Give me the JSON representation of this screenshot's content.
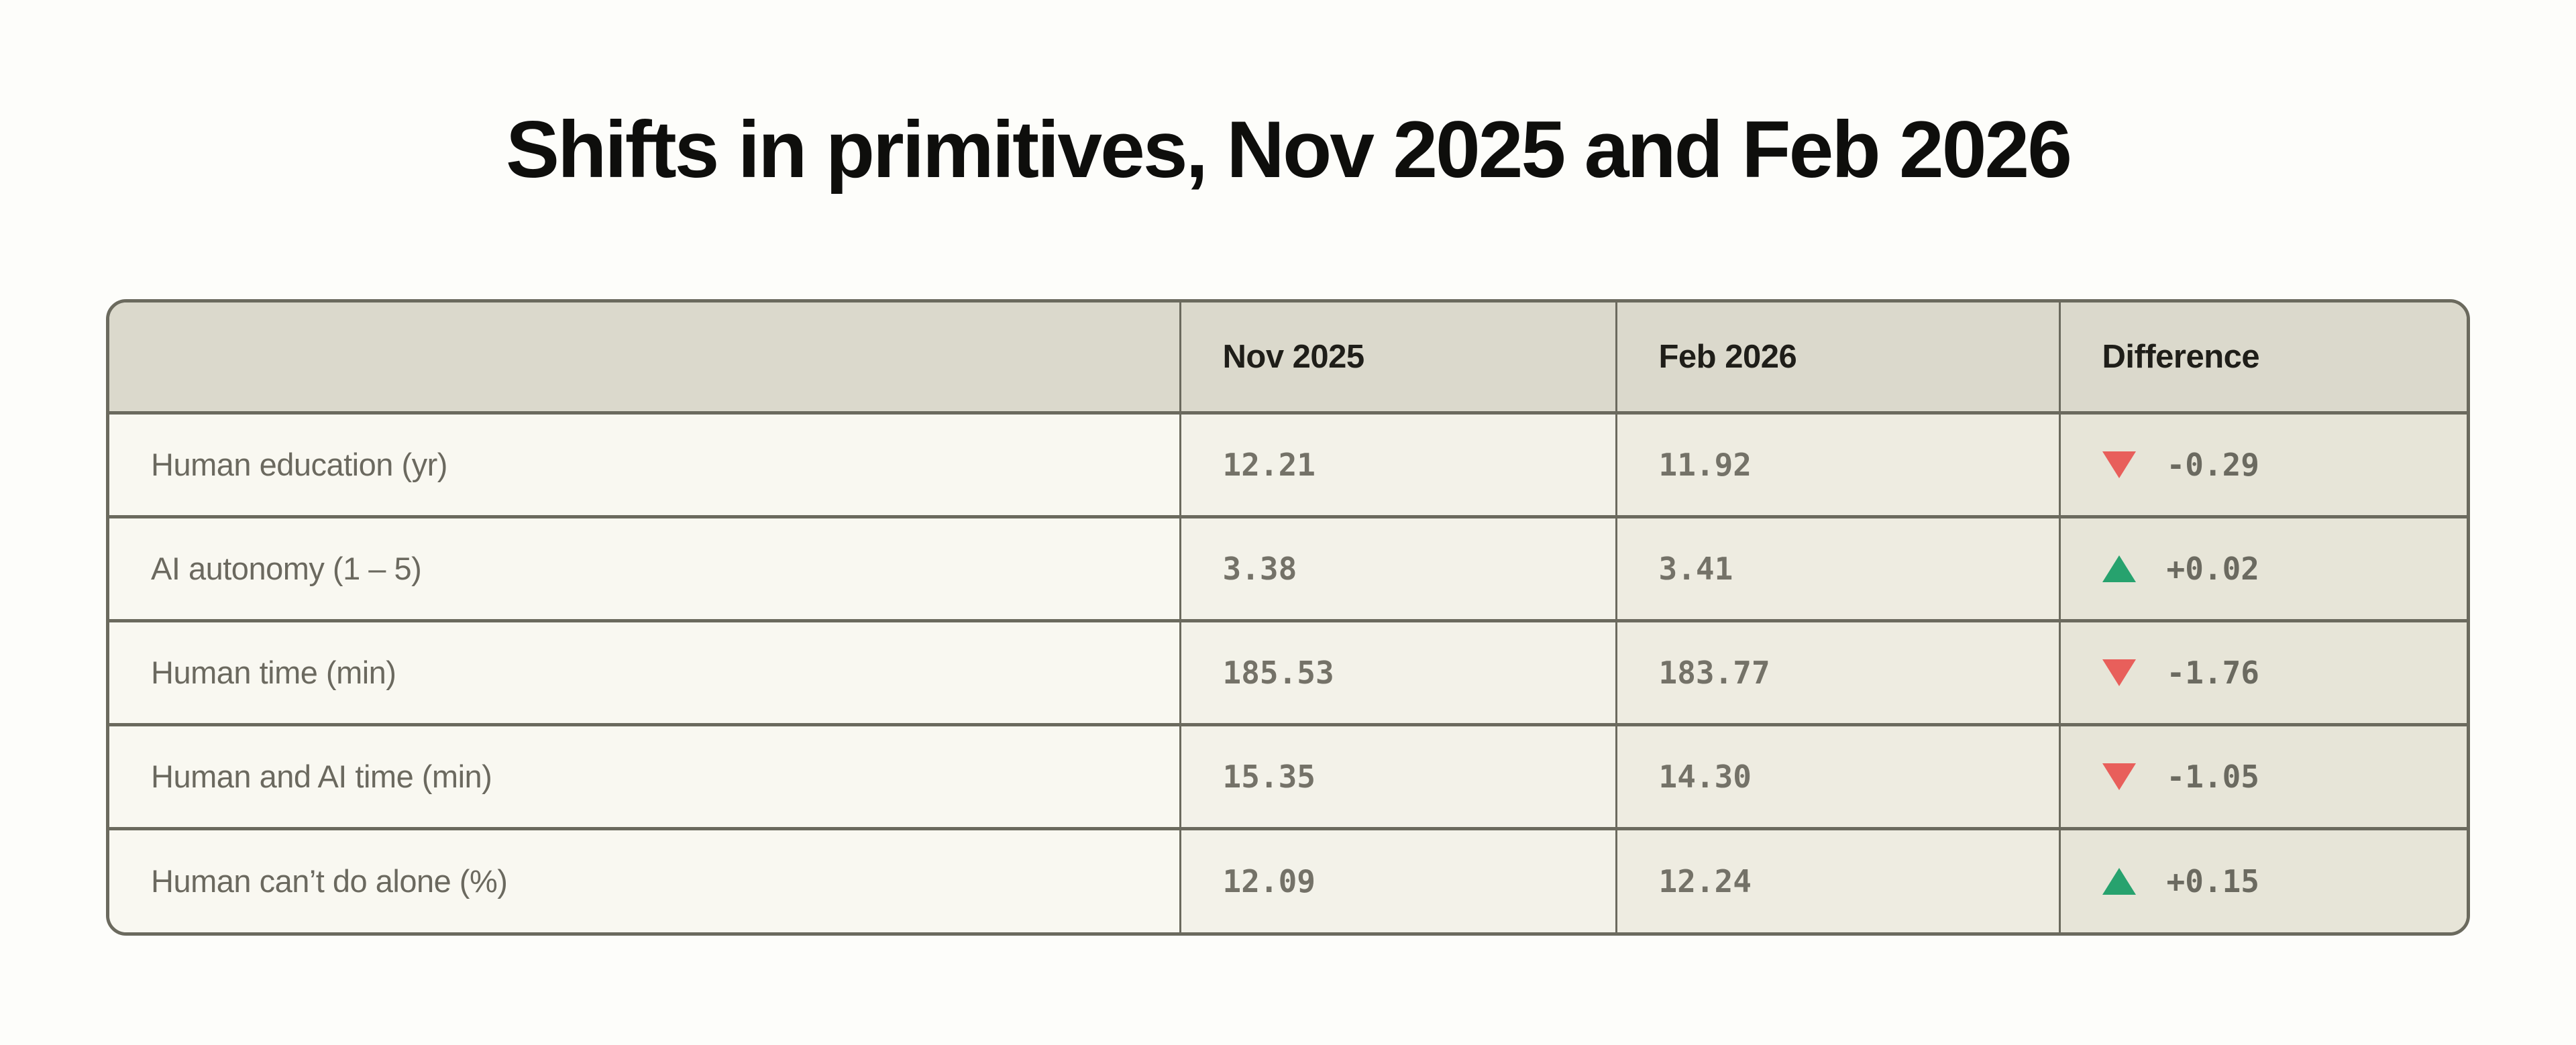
{
  "title": "Shifts in primitives, Nov 2025 and Feb 2026",
  "table": {
    "columns": [
      "",
      "Nov 2025",
      "Feb 2026",
      "Difference"
    ],
    "rows": [
      {
        "label": "Human education (yr)",
        "nov": "12.21",
        "feb": "11.92",
        "diff": "-0.29",
        "trend": "down"
      },
      {
        "label": "AI autonomy (1 – 5)",
        "nov": "3.38",
        "feb": "3.41",
        "diff": "+0.02",
        "trend": "up"
      },
      {
        "label": "Human time (min)",
        "nov": "185.53",
        "feb": "183.77",
        "diff": "-1.76",
        "trend": "down"
      },
      {
        "label": "Human and AI time (min)",
        "nov": "15.35",
        "feb": "14.30",
        "diff": "-1.05",
        "trend": "down"
      },
      {
        "label": "Human can’t do alone (%)",
        "nov": "12.09",
        "feb": "12.24",
        "diff": "+0.15",
        "trend": "up"
      }
    ]
  },
  "colors": {
    "trend_up": "#27a26e",
    "trend_down": "#e85f5b",
    "header_bg": "#dbd9cc",
    "label_col_bg": "#f9f8f1",
    "nov_col_bg": "#f3f2e9",
    "feb_col_bg": "#eeece1",
    "diff_col_bg": "#e7e5d8",
    "border": "#6b6a5e",
    "number_text": "#747268",
    "label_text": "#6b695f",
    "title_text": "#0e0e0c",
    "page_bg": "#fdfdfa"
  },
  "chart_data": {
    "type": "table",
    "title": "Shifts in primitives, Nov 2025 and Feb 2026",
    "categories": [
      "Human education (yr)",
      "AI autonomy (1 – 5)",
      "Human time (min)",
      "Human and AI time (min)",
      "Human can’t do alone (%)"
    ],
    "series": [
      {
        "name": "Nov 2025",
        "values": [
          12.21,
          3.38,
          185.53,
          15.35,
          12.09
        ]
      },
      {
        "name": "Feb 2026",
        "values": [
          11.92,
          3.41,
          183.77,
          14.3,
          12.24
        ]
      },
      {
        "name": "Difference",
        "values": [
          -0.29,
          0.02,
          -1.76,
          -1.05,
          0.15
        ]
      }
    ],
    "layout_hints": {
      "grid": "full-borders",
      "legend": "none",
      "diff_markers": "colored triangles up/down"
    }
  }
}
